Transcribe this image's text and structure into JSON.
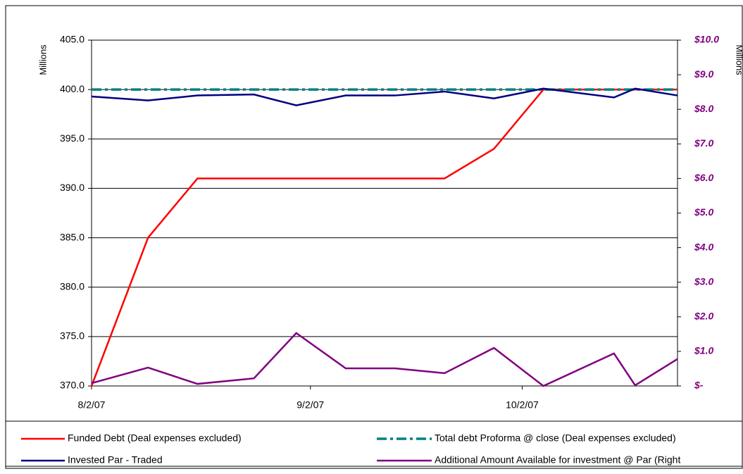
{
  "chart_data": {
    "type": "line",
    "y_label": "Millions",
    "y2_label": "Millions",
    "x": [
      "8/2/07",
      "8/10/07",
      "8/17/07",
      "8/25/07",
      "8/31/07",
      "9/7/07",
      "9/14/07",
      "9/21/07",
      "9/28/07",
      "10/5/07",
      "10/15/07",
      "10/18/07",
      "10/24/07"
    ],
    "xlim": [
      "8/2/07",
      "10/24/07"
    ],
    "xticks": [
      "8/2/07",
      "9/2/07",
      "10/2/07"
    ],
    "ylim": [
      370,
      405
    ],
    "yticks": [
      {
        "value": 370,
        "label": "370.0"
      },
      {
        "value": 375,
        "label": "375.0"
      },
      {
        "value": 380,
        "label": "380.0"
      },
      {
        "value": 385,
        "label": "385.0"
      },
      {
        "value": 390,
        "label": "390.0"
      },
      {
        "value": 395,
        "label": "395.0"
      },
      {
        "value": 400,
        "label": "400.0"
      },
      {
        "value": 405,
        "label": "405.0"
      }
    ],
    "y2lim": [
      0,
      10
    ],
    "y2ticks": [
      {
        "value": 0,
        "label": "$-"
      },
      {
        "value": 1,
        "label": "$1.0"
      },
      {
        "value": 2,
        "label": "$2.0"
      },
      {
        "value": 3,
        "label": "$3.0"
      },
      {
        "value": 4,
        "label": "$4.0"
      },
      {
        "value": 5,
        "label": "$5.0"
      },
      {
        "value": 6,
        "label": "$6.0"
      },
      {
        "value": 7,
        "label": "$7.0"
      },
      {
        "value": 8,
        "label": "$8.0"
      },
      {
        "value": 9,
        "label": "$9.0"
      },
      {
        "value": 10,
        "label": "$10.0"
      }
    ],
    "grid": true,
    "legend": "bottom",
    "series": [
      {
        "name": "Funded Debt (Deal expenses excluded)",
        "color": "#ff0000",
        "linestyle": "solid",
        "values": [
          370,
          385,
          391,
          391,
          391,
          391,
          391,
          391,
          394,
          400,
          400,
          400,
          400
        ]
      },
      {
        "name": "Total debt Proforma @ close (Deal expenses excluded)",
        "color": "#008080",
        "linestyle": "dashdot",
        "values": [
          400,
          400,
          400,
          400,
          400,
          400,
          400,
          400,
          400,
          400,
          400,
          400,
          400
        ]
      },
      {
        "name": "Invested Par - Traded",
        "color": "#000080",
        "linestyle": "solid",
        "values": [
          399.3,
          398.9,
          399.4,
          399.5,
          398.4,
          399.4,
          399.4,
          399.8,
          399.1,
          400.1,
          399.2,
          400.1,
          399.4
        ]
      },
      {
        "name": "Additional Amount Available for investment @ Par (Right",
        "color": "#800080",
        "linestyle": "solid",
        "axis": "y2",
        "values": [
          0.08,
          0.53,
          0.06,
          0.22,
          1.53,
          0.51,
          0.51,
          0.37,
          1.1,
          0,
          0.94,
          0.02,
          0.78
        ]
      }
    ]
  }
}
